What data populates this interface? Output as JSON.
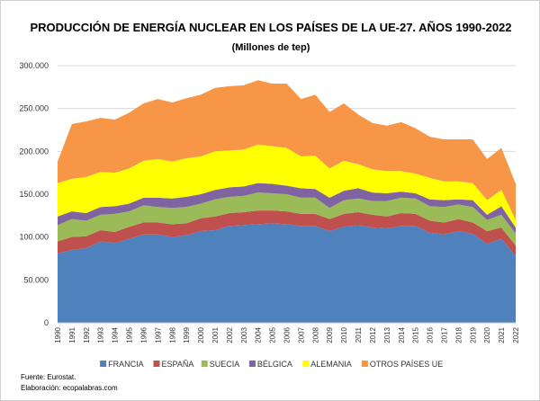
{
  "chart_data": {
    "type": "area",
    "stacked": true,
    "title": "PRODUCCIÓN DE ENERGÍA NUCLEAR EN LOS PAÍSES DE LA UE-27. AÑOS 1990-2022",
    "subtitle": "(Millones de tep)",
    "xlabel": "",
    "ylabel": "",
    "ylim": [
      0,
      300000
    ],
    "yticks": [
      "0",
      "50.000",
      "100.000",
      "150.000",
      "200.000",
      "250.000",
      "300.000"
    ],
    "grid": true,
    "legend": "bottom",
    "categories": [
      "1990",
      "1991",
      "1992",
      "1993",
      "1994",
      "1995",
      "1996",
      "1997",
      "1998",
      "1999",
      "2000",
      "2001",
      "2002",
      "2003",
      "2004",
      "2005",
      "2006",
      "2007",
      "2008",
      "2009",
      "2010",
      "2011",
      "2012",
      "2013",
      "2014",
      "2015",
      "2016",
      "2017",
      "2018",
      "2019",
      "2020",
      "2021",
      "2022"
    ],
    "series": [
      {
        "name": "FRANCIA",
        "color": "#4f81bd",
        "values": [
          81000,
          85000,
          87000,
          95000,
          93000,
          98000,
          103000,
          103000,
          100000,
          102000,
          107000,
          108000,
          113000,
          114000,
          115000,
          116000,
          115000,
          113000,
          113000,
          107000,
          112000,
          114000,
          111000,
          110000,
          113000,
          113000,
          105000,
          103000,
          107000,
          104000,
          92000,
          98000,
          78000
        ]
      },
      {
        "name": "ESPAÑA",
        "color": "#c0504d",
        "values": [
          14000,
          15000,
          14000,
          13000,
          13000,
          14000,
          14000,
          14000,
          15000,
          14000,
          15000,
          16000,
          15000,
          15000,
          16000,
          15000,
          15000,
          14000,
          14000,
          14000,
          15000,
          15000,
          15000,
          14000,
          15000,
          14000,
          14000,
          14000,
          14000,
          13000,
          15000,
          13000,
          12000
        ]
      },
      {
        "name": "SUECIA",
        "color": "#9bbb59",
        "values": [
          19000,
          21000,
          18000,
          18000,
          21000,
          18000,
          20000,
          18000,
          19000,
          19000,
          17000,
          20000,
          19000,
          19000,
          21000,
          20000,
          20000,
          19000,
          19000,
          13000,
          16000,
          16000,
          16000,
          18000,
          18000,
          18000,
          17000,
          18000,
          17000,
          18000,
          13000,
          15000,
          14000
        ]
      },
      {
        "name": "BÉLGICA",
        "color": "#8064a2",
        "values": [
          10000,
          9000,
          9000,
          9000,
          9000,
          9000,
          9000,
          11000,
          11000,
          12000,
          11000,
          11000,
          11000,
          11000,
          11000,
          11000,
          10000,
          11000,
          10000,
          12000,
          11000,
          12000,
          10000,
          9000,
          7000,
          6000,
          8000,
          8000,
          6000,
          8000,
          6000,
          10000,
          7000
        ]
      },
      {
        "name": "ALEMANIA",
        "color": "#ffff00",
        "values": [
          39000,
          38000,
          42000,
          41000,
          39000,
          41000,
          43000,
          45000,
          43000,
          45000,
          44000,
          45000,
          43000,
          43000,
          45000,
          44000,
          44000,
          37000,
          39000,
          34000,
          35000,
          28000,
          27000,
          26000,
          24000,
          23000,
          25000,
          22000,
          21000,
          20000,
          17000,
          19000,
          9000
        ]
      },
      {
        "name": "OTROS PAÍSES UE",
        "color": "#f79646",
        "values": [
          25000,
          64000,
          65000,
          63000,
          62000,
          65000,
          67000,
          70000,
          69000,
          70000,
          72000,
          74000,
          75000,
          75000,
          75000,
          73000,
          75000,
          67000,
          71000,
          66000,
          67000,
          58000,
          54000,
          53000,
          57000,
          53000,
          48000,
          49000,
          49000,
          51000,
          48000,
          49000,
          42000
        ]
      }
    ]
  },
  "footer": {
    "source": "Fuente: Eurostat.",
    "credit": "Elaboración: ecopalabras.com"
  }
}
